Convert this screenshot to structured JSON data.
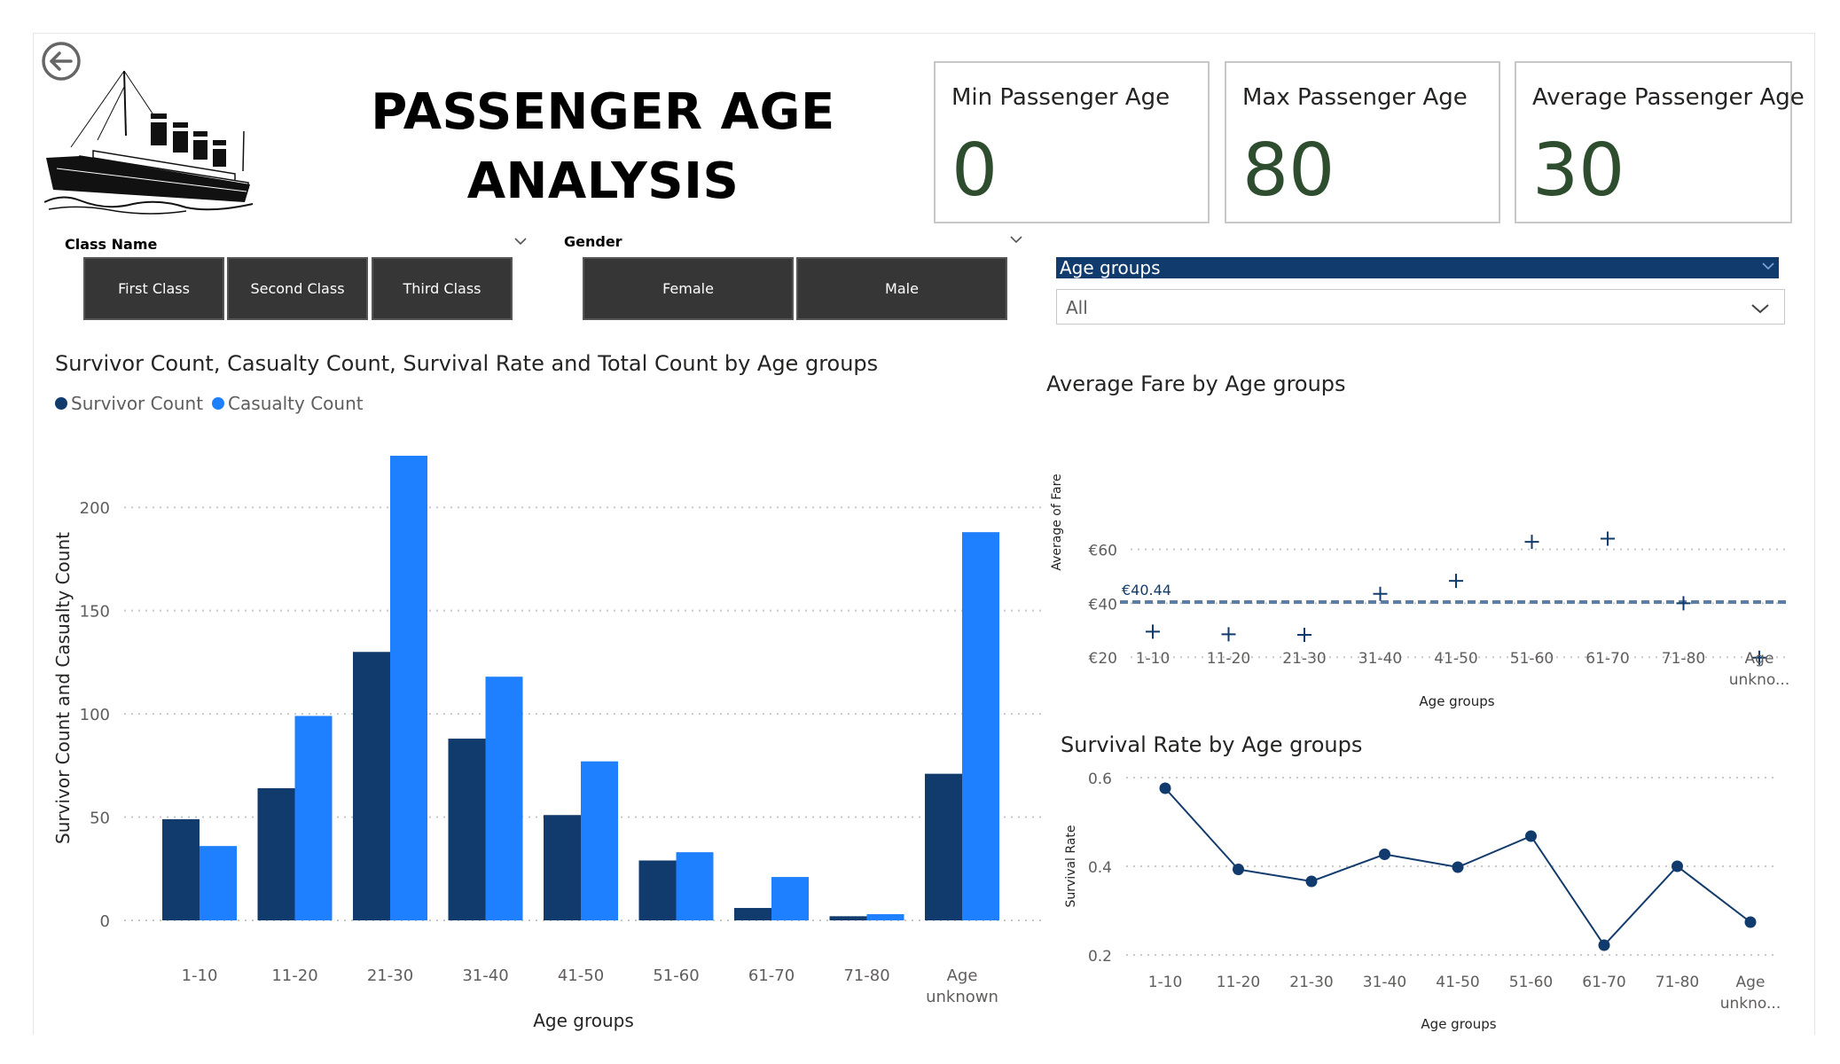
{
  "header": {
    "title": "PASSENGER AGE ANALYSIS"
  },
  "kpis": [
    {
      "label": "Min Passenger Age",
      "value": "0"
    },
    {
      "label": "Max Passenger Age",
      "value": "80"
    },
    {
      "label": "Average Passenger Age",
      "value": "30"
    }
  ],
  "slicers": {
    "class": {
      "title": "Class Name",
      "options": [
        "First Class",
        "Second Class",
        "Third Class"
      ]
    },
    "gender": {
      "title": "Gender",
      "options": [
        "Female",
        "Male"
      ]
    },
    "age_groups": {
      "title": "Age groups",
      "selected": "All"
    }
  },
  "colors": {
    "survivor": "#123b6d",
    "casualty": "#1f80ff",
    "kpi_value": "#2e4d2e",
    "tile_bg": "#363636"
  },
  "icons": [
    "back-arrow-icon",
    "titanic-ship-logo",
    "chevron-down-icon"
  ],
  "chart_data": [
    {
      "type": "bar",
      "title": "Survivor Count, Casualty Count, Survival Rate and Total Count by Age groups",
      "xlabel": "Age groups",
      "ylabel": "Survivor Count and Casualty Count",
      "ylim": [
        0,
        225
      ],
      "yticks": [
        0,
        50,
        100,
        150,
        200
      ],
      "grid": true,
      "legend": "top-left",
      "categories": [
        "1-10",
        "11-20",
        "21-30",
        "31-40",
        "41-50",
        "51-60",
        "61-70",
        "71-80",
        "Age unknown"
      ],
      "series": [
        {
          "name": "Survivor Count",
          "values": [
            49,
            64,
            130,
            88,
            51,
            29,
            6,
            2,
            71
          ]
        },
        {
          "name": "Casualty Count",
          "values": [
            36,
            99,
            225,
            118,
            77,
            33,
            21,
            3,
            188
          ]
        }
      ]
    },
    {
      "type": "scatter",
      "title": "Average Fare by Age groups",
      "xlabel": "Age groups",
      "ylabel": "Average of Fare",
      "ylim": [
        0,
        70
      ],
      "yticks": [
        "€20",
        "€40",
        "€60"
      ],
      "grid": true,
      "categories": [
        "1-10",
        "11-20",
        "21-30",
        "31-40",
        "41-50",
        "51-60",
        "61-70",
        "71-80",
        "Age unkno..."
      ],
      "values": [
        29.5,
        28.5,
        28.3,
        43.5,
        48.3,
        62.8,
        64.0,
        40.0,
        19.8
      ],
      "average_line": {
        "value": 40.44,
        "label": "€40.44"
      }
    },
    {
      "type": "line",
      "title": "Survival Rate by Age groups",
      "xlabel": "Age groups",
      "ylabel": "Survival Rate",
      "ylim": [
        0.2,
        0.6
      ],
      "yticks": [
        "0.2",
        "0.4",
        "0.6"
      ],
      "grid": true,
      "categories": [
        "1-10",
        "11-20",
        "21-30",
        "31-40",
        "41-50",
        "51-60",
        "61-70",
        "71-80",
        "Age unkno..."
      ],
      "values": [
        0.576,
        0.393,
        0.366,
        0.427,
        0.398,
        0.468,
        0.222,
        0.4,
        0.274
      ]
    }
  ]
}
